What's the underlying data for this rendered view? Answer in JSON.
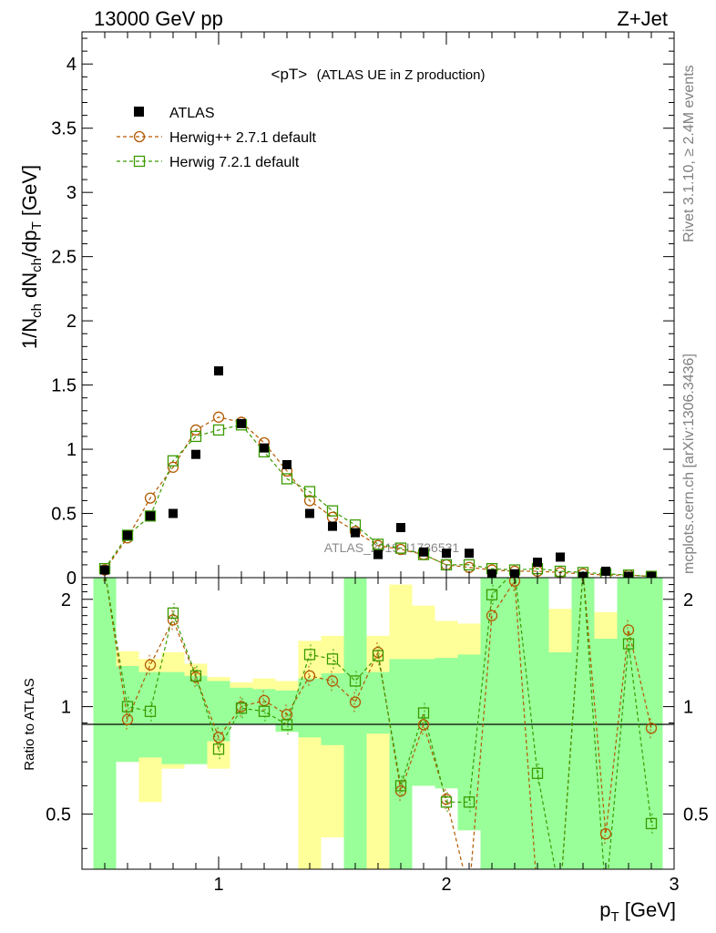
{
  "header": {
    "left": "13000 GeV pp",
    "right": "Z+Jet"
  },
  "side": {
    "rivet": "Rivet 3.1.10, ≥ 2.4M events",
    "site": "mcplots.cern.ch [arXiv:1306.3436]"
  },
  "watermark": "ATLAS_2019_I1736531",
  "colors": {
    "atlas": "#000000",
    "herwigpp": "#b35900",
    "herwig7": "#3a9a00",
    "band_inner": "#99ff99",
    "band_outer": "#ffff99"
  },
  "chart_data": {
    "type": "scatter",
    "title_main": "<pT>",
    "title_sub": "(ATLAS UE in Z production)",
    "ylabel": "1/N_ch dN_ch/dp_T [GeV]",
    "ylabel_ratio": "Ratio to ATLAS",
    "xlabel": "p_T [GeV]",
    "xlim": [
      0.4,
      3.0
    ],
    "ylim": [
      0,
      4.25
    ],
    "ratio_ylim": [
      0.35,
      2.3
    ],
    "x_ticks": [
      "1",
      "2",
      "3"
    ],
    "y_ticks": [
      "0",
      "0.5",
      "1",
      "1.5",
      "2",
      "2.5",
      "3",
      "3.5",
      "4"
    ],
    "ratio_y_ticks": [
      "0.5",
      "1",
      "2"
    ],
    "x": [
      0.5,
      0.6,
      0.7,
      0.8,
      0.9,
      1.0,
      1.1,
      1.2,
      1.3,
      1.4,
      1.5,
      1.6,
      1.7,
      1.8,
      1.9,
      2.0,
      2.1,
      2.2,
      2.3,
      2.4,
      2.5,
      2.6,
      2.7,
      2.8,
      2.9
    ],
    "series": [
      {
        "name": "ATLAS",
        "marker": "filled-square",
        "values": [
          0.06,
          0.33,
          0.48,
          0.5,
          0.96,
          1.61,
          1.2,
          1.01,
          0.88,
          0.5,
          0.4,
          0.35,
          0.18,
          0.39,
          0.2,
          0.19,
          0.19,
          0.03,
          0.03,
          0.12,
          0.16,
          0.01,
          0.05,
          0.01,
          0.01
        ]
      },
      {
        "name": "Herwig++ 2.7.1 default",
        "marker": "open-circle",
        "line": "dashed",
        "values": [
          0.06,
          0.31,
          0.62,
          0.86,
          1.15,
          1.25,
          1.21,
          1.05,
          0.83,
          0.6,
          0.47,
          0.36,
          0.25,
          0.22,
          0.18,
          0.1,
          0.08,
          0.06,
          0.05,
          0.05,
          0.04,
          0.03,
          0.02,
          0.02,
          0.01
        ]
      },
      {
        "name": "Herwig 7.2.1 default",
        "marker": "open-square",
        "line": "dashed",
        "values": [
          0.07,
          0.33,
          0.48,
          0.91,
          1.1,
          1.15,
          1.19,
          0.98,
          0.77,
          0.67,
          0.52,
          0.41,
          0.26,
          0.23,
          0.18,
          0.1,
          0.1,
          0.07,
          0.06,
          0.07,
          0.05,
          0.04,
          0.03,
          0.02,
          0.01
        ]
      }
    ],
    "ratio": {
      "herwigpp": [
        2.4,
        0.92,
        1.31,
        1.75,
        1.21,
        0.82,
        1.0,
        1.04,
        0.95,
        1.22,
        1.18,
        1.03,
        1.42,
        0.58,
        0.89,
        0.55,
        0.3,
        1.8,
        2.25,
        0.2,
        0.2,
        2.4,
        0.44,
        1.64,
        0.87
      ],
      "herwig7": [
        2.4,
        1.0,
        0.97,
        1.83,
        1.22,
        0.76,
        0.99,
        0.97,
        0.89,
        1.4,
        1.36,
        1.18,
        1.39,
        0.6,
        0.96,
        0.54,
        0.54,
        2.06,
        2.4,
        0.65,
        0.2,
        2.4,
        0.2,
        1.5,
        0.47
      ],
      "band_inner_lo": [
        0.1,
        0.7,
        0.72,
        0.69,
        0.69,
        0.8,
        0.89,
        0.89,
        0.85,
        0.82,
        0.78,
        0.1,
        0.84,
        0.1,
        0.6,
        0.59,
        0.45,
        0.1,
        0.1,
        0.1,
        0.1,
        0.1,
        0.1,
        0.1,
        0.1
      ],
      "band_inner_hi": [
        2.5,
        1.3,
        1.25,
        1.25,
        1.22,
        1.18,
        1.13,
        1.12,
        1.11,
        1.2,
        1.24,
        2.5,
        1.25,
        1.36,
        1.36,
        1.37,
        1.4,
        2.5,
        2.5,
        2.5,
        1.42,
        2.5,
        1.55,
        2.5,
        2.5
      ],
      "band_outer_lo": [
        0.59,
        0.7,
        0.54,
        0.67,
        0.69,
        0.67,
        0.89,
        0.89,
        0.85,
        0.34,
        0.43,
        0.1,
        0.35,
        0.1,
        0.6,
        0.59,
        0.45,
        0.1,
        0.1,
        0.1,
        0.1,
        0.1,
        0.38,
        0.1,
        0.1
      ],
      "band_outer_hi": [
        2.5,
        1.43,
        1.36,
        1.42,
        1.32,
        1.21,
        1.17,
        1.2,
        1.18,
        1.53,
        1.58,
        2.5,
        1.58,
        2.2,
        1.92,
        1.74,
        1.71,
        2.5,
        2.5,
        2.5,
        1.88,
        2.5,
        1.84,
        2.5,
        2.5
      ],
      "reference_line": 1
    }
  }
}
